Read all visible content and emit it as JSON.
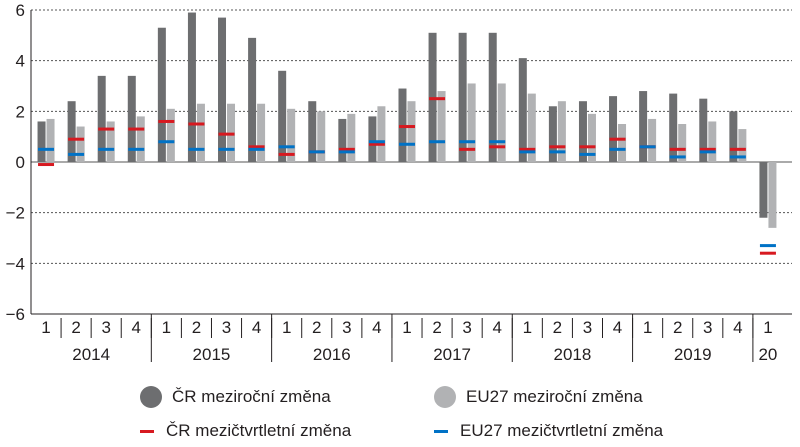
{
  "chart_data": {
    "type": "bar",
    "ylim": [
      -6,
      6
    ],
    "yticks": [
      -6,
      -4,
      -2,
      0,
      2,
      4,
      6
    ],
    "ytick_labels": [
      "−6",
      "−4",
      "−2",
      "0",
      "2",
      "4",
      "6"
    ],
    "grid": true,
    "categories": [
      "1",
      "2",
      "3",
      "4",
      "1",
      "2",
      "3",
      "4",
      "1",
      "2",
      "3",
      "4",
      "1",
      "2",
      "3",
      "4",
      "1",
      "2",
      "3",
      "4",
      "1",
      "2",
      "3",
      "4",
      "1"
    ],
    "year_groups": [
      {
        "label": "2014",
        "count": 4
      },
      {
        "label": "2015",
        "count": 4
      },
      {
        "label": "2016",
        "count": 4
      },
      {
        "label": "2017",
        "count": 4
      },
      {
        "label": "2018",
        "count": 4
      },
      {
        "label": "2019",
        "count": 4
      },
      {
        "label": "20",
        "count": 1
      }
    ],
    "series": [
      {
        "name": "ČR meziroční změna",
        "kind": "bar",
        "color": "#6d6e70",
        "values": [
          1.6,
          2.4,
          3.4,
          3.4,
          5.3,
          5.9,
          5.7,
          4.9,
          3.6,
          2.4,
          1.7,
          1.8,
          2.9,
          5.1,
          5.1,
          5.1,
          4.1,
          2.2,
          2.4,
          2.6,
          2.8,
          2.7,
          2.5,
          2.0,
          -2.2
        ]
      },
      {
        "name": "EU27 meziroční změna",
        "kind": "bar",
        "color": "#b1b2b4",
        "values": [
          1.7,
          1.4,
          1.6,
          1.8,
          2.1,
          2.3,
          2.3,
          2.3,
          2.1,
          2.0,
          1.9,
          2.2,
          2.4,
          2.8,
          3.1,
          3.1,
          2.7,
          2.4,
          1.9,
          1.5,
          1.7,
          1.5,
          1.6,
          1.3,
          -2.6
        ]
      },
      {
        "name": "ČR mezičtvrtletní změna",
        "kind": "marker",
        "color": "#d71920",
        "values": [
          -0.1,
          0.9,
          1.3,
          1.3,
          1.6,
          1.5,
          1.1,
          0.6,
          0.3,
          0.4,
          0.5,
          0.7,
          1.4,
          2.5,
          0.5,
          0.6,
          0.5,
          0.6,
          0.6,
          0.9,
          0.6,
          0.5,
          0.5,
          0.5,
          -3.6
        ]
      },
      {
        "name": "EU27 mezičtvrtletní změna",
        "kind": "marker",
        "color": "#0072c6",
        "values": [
          0.5,
          0.3,
          0.5,
          0.5,
          0.8,
          0.5,
          0.5,
          0.5,
          0.6,
          0.4,
          0.4,
          0.8,
          0.7,
          0.8,
          0.8,
          0.8,
          0.4,
          0.4,
          0.3,
          0.5,
          0.6,
          0.2,
          0.4,
          0.2,
          -3.3
        ]
      }
    ]
  }
}
